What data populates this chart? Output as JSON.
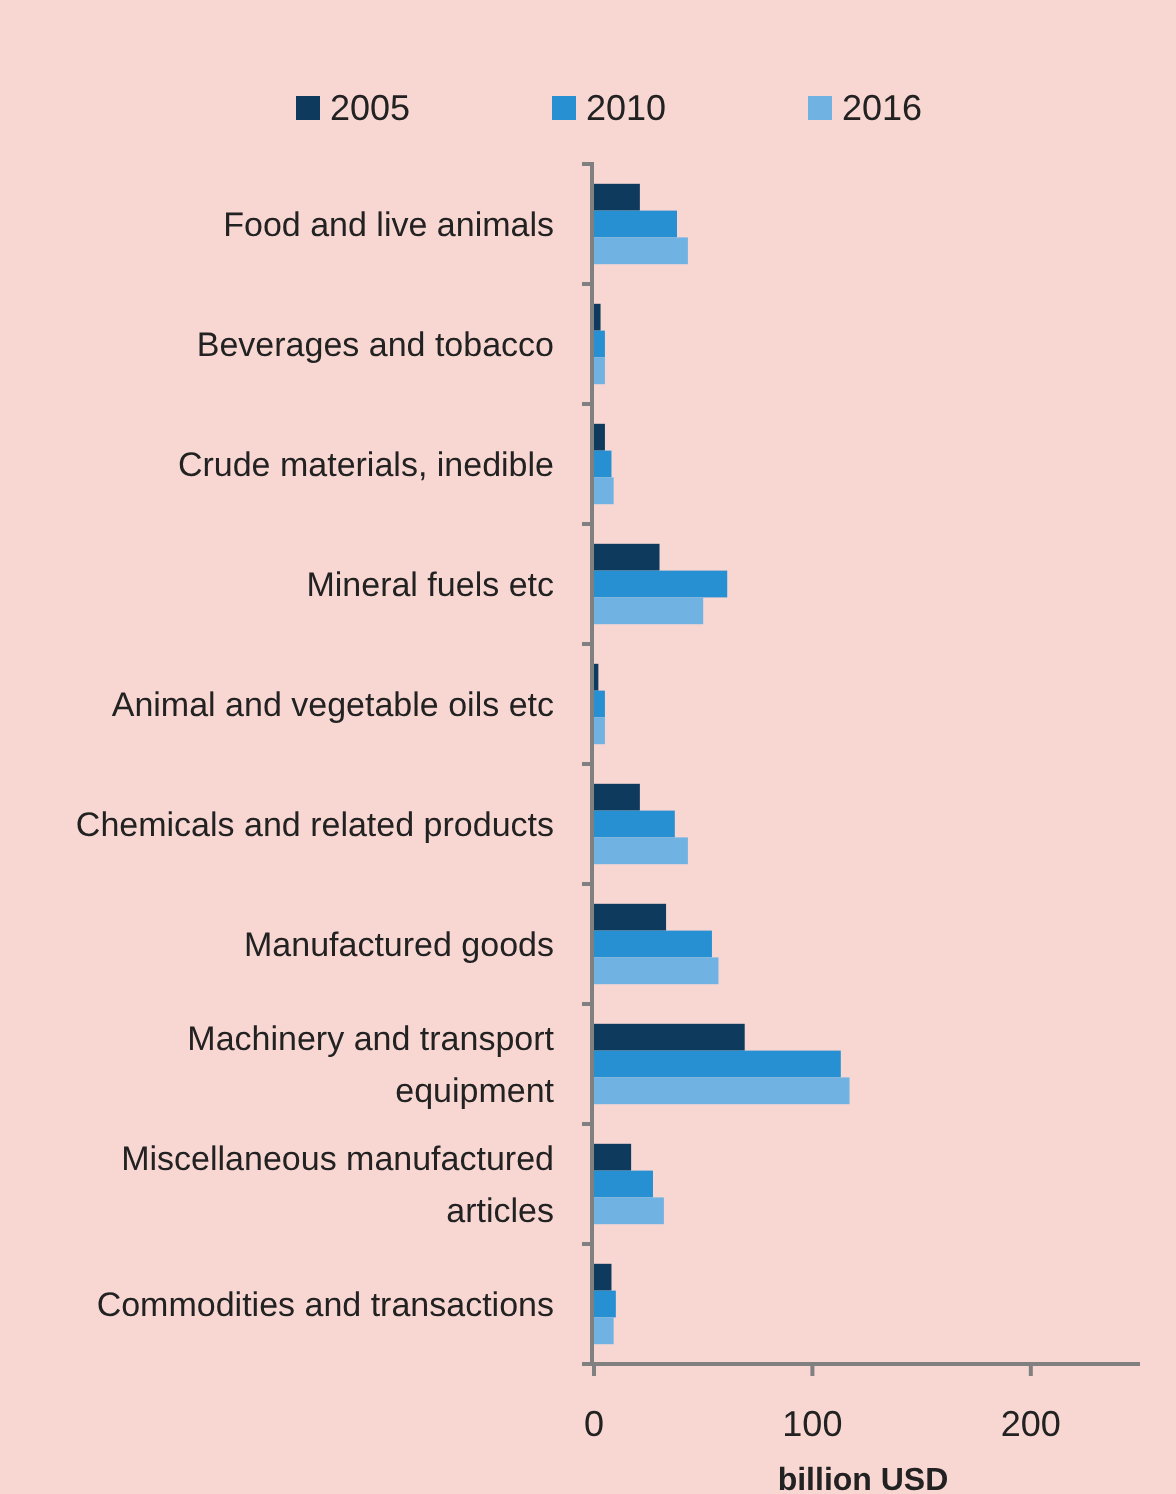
{
  "chart_data": {
    "type": "bar",
    "orientation": "horizontal",
    "xlabel": "billion USD",
    "categories": [
      "Food and live animals",
      "Beverages and tobacco",
      "Crude materials, inedible",
      "Mineral fuels etc",
      "Animal and vegetable oils etc",
      "Chemicals and related products",
      "Manufactured goods",
      "Machinery and transport equipment",
      "Miscellaneous manufactured articles",
      "Commodities and transactions"
    ],
    "series": [
      {
        "name": "2005",
        "color": "#0e3a5e",
        "values": [
          21,
          3,
          5,
          30,
          2,
          21,
          33,
          69,
          17,
          8
        ]
      },
      {
        "name": "2010",
        "color": "#2690d2",
        "values": [
          38,
          5,
          8,
          61,
          5,
          37,
          54,
          113,
          27,
          10
        ]
      },
      {
        "name": "2016",
        "color": "#70b3e3",
        "values": [
          43,
          5,
          9,
          50,
          5,
          43,
          57,
          117,
          32,
          9
        ]
      }
    ],
    "xlim": [
      0,
      250
    ],
    "xticks": [
      0,
      100,
      200
    ],
    "legend": "top",
    "grid": false
  }
}
